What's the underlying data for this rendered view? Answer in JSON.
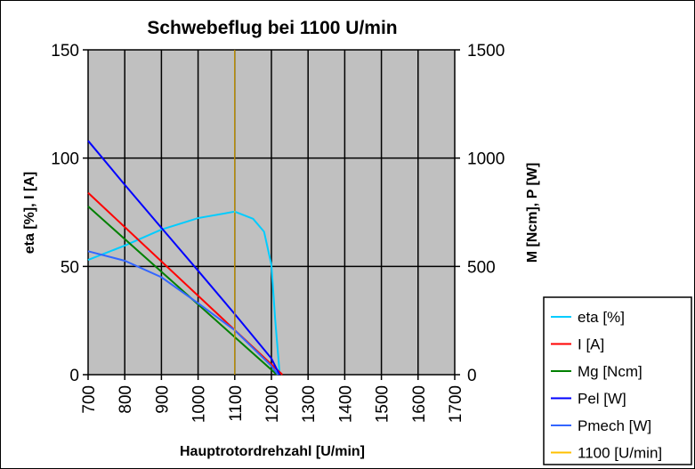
{
  "chart_data": {
    "type": "line",
    "title": "Schwebeflug bei 1100 U/min",
    "xlabel": "Hauptrotordrehzahl [U/min]",
    "ylabel_left": "eta [%], I [A]",
    "ylabel_right": "M [Ncm], P [W]",
    "xlim": [
      700,
      1700
    ],
    "ylim_left": [
      0,
      150
    ],
    "ylim_right": [
      0,
      1500
    ],
    "x_ticks": [
      "700",
      "800",
      "900",
      "1000",
      "1100",
      "1200",
      "1300",
      "1400",
      "1500",
      "1600",
      "1700"
    ],
    "y_ticks_left": [
      "0",
      "50",
      "100",
      "150"
    ],
    "y_ticks_right": [
      "0",
      "500",
      "1000",
      "1500"
    ],
    "grid": true,
    "legend_position": "bottom-right",
    "series": [
      {
        "name": "eta [%]",
        "axis": "left",
        "color": "#00ccff",
        "x": [
          700,
          800,
          900,
          1000,
          1100,
          1150,
          1180,
          1200,
          1210,
          1222
        ],
        "y": [
          53,
          59.6,
          67,
          72.3,
          75.3,
          72,
          66,
          50.7,
          26,
          1.4
        ]
      },
      {
        "name": "I [A]",
        "axis": "left",
        "color": "#ff0000",
        "x": [
          700,
          1230
        ],
        "y": [
          84,
          0
        ]
      },
      {
        "name": "Mg [Ncm]",
        "axis": "right",
        "color": "#008000",
        "x": [
          700,
          1215
        ],
        "y": [
          777,
          0
        ]
      },
      {
        "name": "Pel [W]",
        "axis": "right",
        "color": "#0000ff",
        "x": [
          700,
          800,
          900,
          1000,
          1100,
          1200,
          1222
        ],
        "y": [
          1080,
          877,
          678,
          480,
          280,
          75,
          0
        ]
      },
      {
        "name": "Pmech [W]",
        "axis": "right",
        "color": "#3366ff",
        "x": [
          700,
          800,
          900,
          1000,
          1100,
          1200,
          1218
        ],
        "y": [
          570,
          526,
          450,
          330,
          205,
          40,
          0
        ]
      },
      {
        "name": "1100 [U/min]",
        "axis": "left",
        "color": "#ffc000",
        "x": [
          1100,
          1100
        ],
        "y": [
          0,
          150
        ]
      }
    ]
  }
}
